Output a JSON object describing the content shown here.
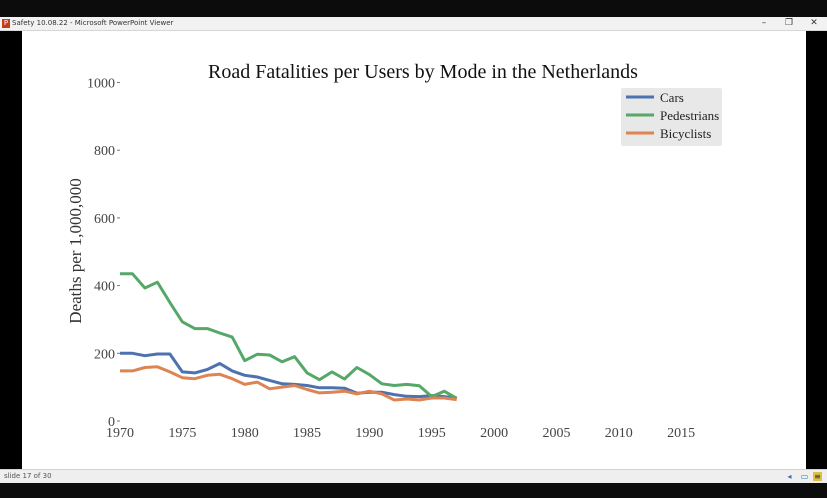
{
  "window": {
    "app_icon": "P",
    "title": "Safety 10.08.22 - Microsoft PowerPoint Viewer",
    "controls": {
      "minimize": "–",
      "maximize": "❐",
      "close": "✕"
    }
  },
  "status": {
    "slide_counter": "slide 17 of 30",
    "icons": [
      "prev-slide-icon",
      "notes-icon",
      "menu-icon"
    ]
  },
  "chart_data": {
    "type": "line",
    "title": "Road Fatalities per Users by Mode in the Netherlands",
    "xlabel": "",
    "ylabel": "Deaths per 1,000,000",
    "xlim": [
      1970,
      2018
    ],
    "ylim": [
      0,
      1000
    ],
    "xticks": [
      1970,
      1975,
      1980,
      1985,
      1990,
      1995,
      2000,
      2005,
      2010,
      2015
    ],
    "yticks": [
      0,
      200,
      400,
      600,
      800,
      1000
    ],
    "grid": false,
    "legend_position": "top-right",
    "x": [
      1970,
      1971,
      1972,
      1973,
      1974,
      1975,
      1976,
      1977,
      1978,
      1979,
      1980,
      1981,
      1982,
      1983,
      1984,
      1985,
      1986,
      1987,
      1988,
      1989,
      1990,
      1991,
      1992,
      1993,
      1994,
      1995,
      1996,
      1997
    ],
    "series": [
      {
        "name": "Cars",
        "color": "#4c72b0",
        "values": [
          200,
          200,
          193,
          198,
          198,
          145,
          142,
          152,
          170,
          148,
          135,
          130,
          120,
          110,
          108,
          105,
          98,
          98,
          97,
          82,
          85,
          85,
          78,
          73,
          72,
          75,
          72,
          68
        ]
      },
      {
        "name": "Pedestrians",
        "color": "#55a868",
        "values": [
          435,
          435,
          393,
          410,
          350,
          293,
          273,
          273,
          260,
          248,
          178,
          197,
          195,
          175,
          190,
          142,
          122,
          145,
          124,
          158,
          137,
          110,
          105,
          108,
          104,
          72,
          88,
          67
        ]
      },
      {
        "name": "Bicyclists",
        "color": "#dd8452",
        "values": [
          148,
          148,
          158,
          160,
          145,
          128,
          125,
          135,
          138,
          125,
          108,
          115,
          95,
          100,
          105,
          93,
          83,
          85,
          88,
          80,
          88,
          80,
          62,
          65,
          62,
          68,
          68,
          63
        ]
      }
    ]
  }
}
